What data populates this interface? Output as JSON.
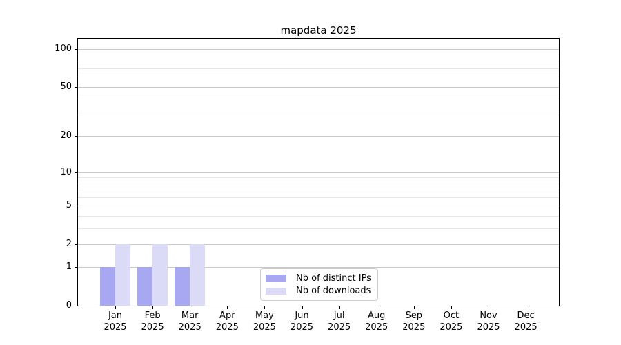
{
  "chart_data": {
    "type": "bar",
    "title": "mapdata 2025",
    "categories": [
      "Jan",
      "Feb",
      "Mar",
      "Apr",
      "May",
      "Jun",
      "Jul",
      "Aug",
      "Sep",
      "Oct",
      "Nov",
      "Dec"
    ],
    "category_year": "2025",
    "series": [
      {
        "name": "Nb of distinct IPs",
        "color": "#a8a8f2",
        "values": [
          1,
          1,
          1,
          0,
          0,
          0,
          0,
          0,
          0,
          0,
          0,
          0
        ]
      },
      {
        "name": "Nb of downloads",
        "color": "#dbdbf8",
        "values": [
          2,
          2,
          2,
          0,
          0,
          0,
          0,
          0,
          0,
          0,
          0,
          0
        ]
      }
    ],
    "xlabel": "",
    "ylabel": "",
    "y_axis": {
      "scale": "log1p",
      "ticks": [
        0,
        1,
        2,
        5,
        10,
        20,
        50,
        100
      ],
      "range": [
        0,
        120
      ],
      "gridlines_major": [
        1,
        2,
        5,
        10,
        20,
        50,
        100
      ],
      "gridlines_minor": [
        3,
        4,
        6,
        7,
        8,
        9,
        30,
        40,
        60,
        70,
        80,
        90
      ]
    },
    "legend": {
      "position": "lower center",
      "entries": [
        "Nb of distinct IPs",
        "Nb of downloads"
      ]
    },
    "colors": {
      "grid_major": "#c8c8c8",
      "grid_minor": "#e6e6e6",
      "spine": "#000000",
      "background": "#ffffff"
    }
  }
}
